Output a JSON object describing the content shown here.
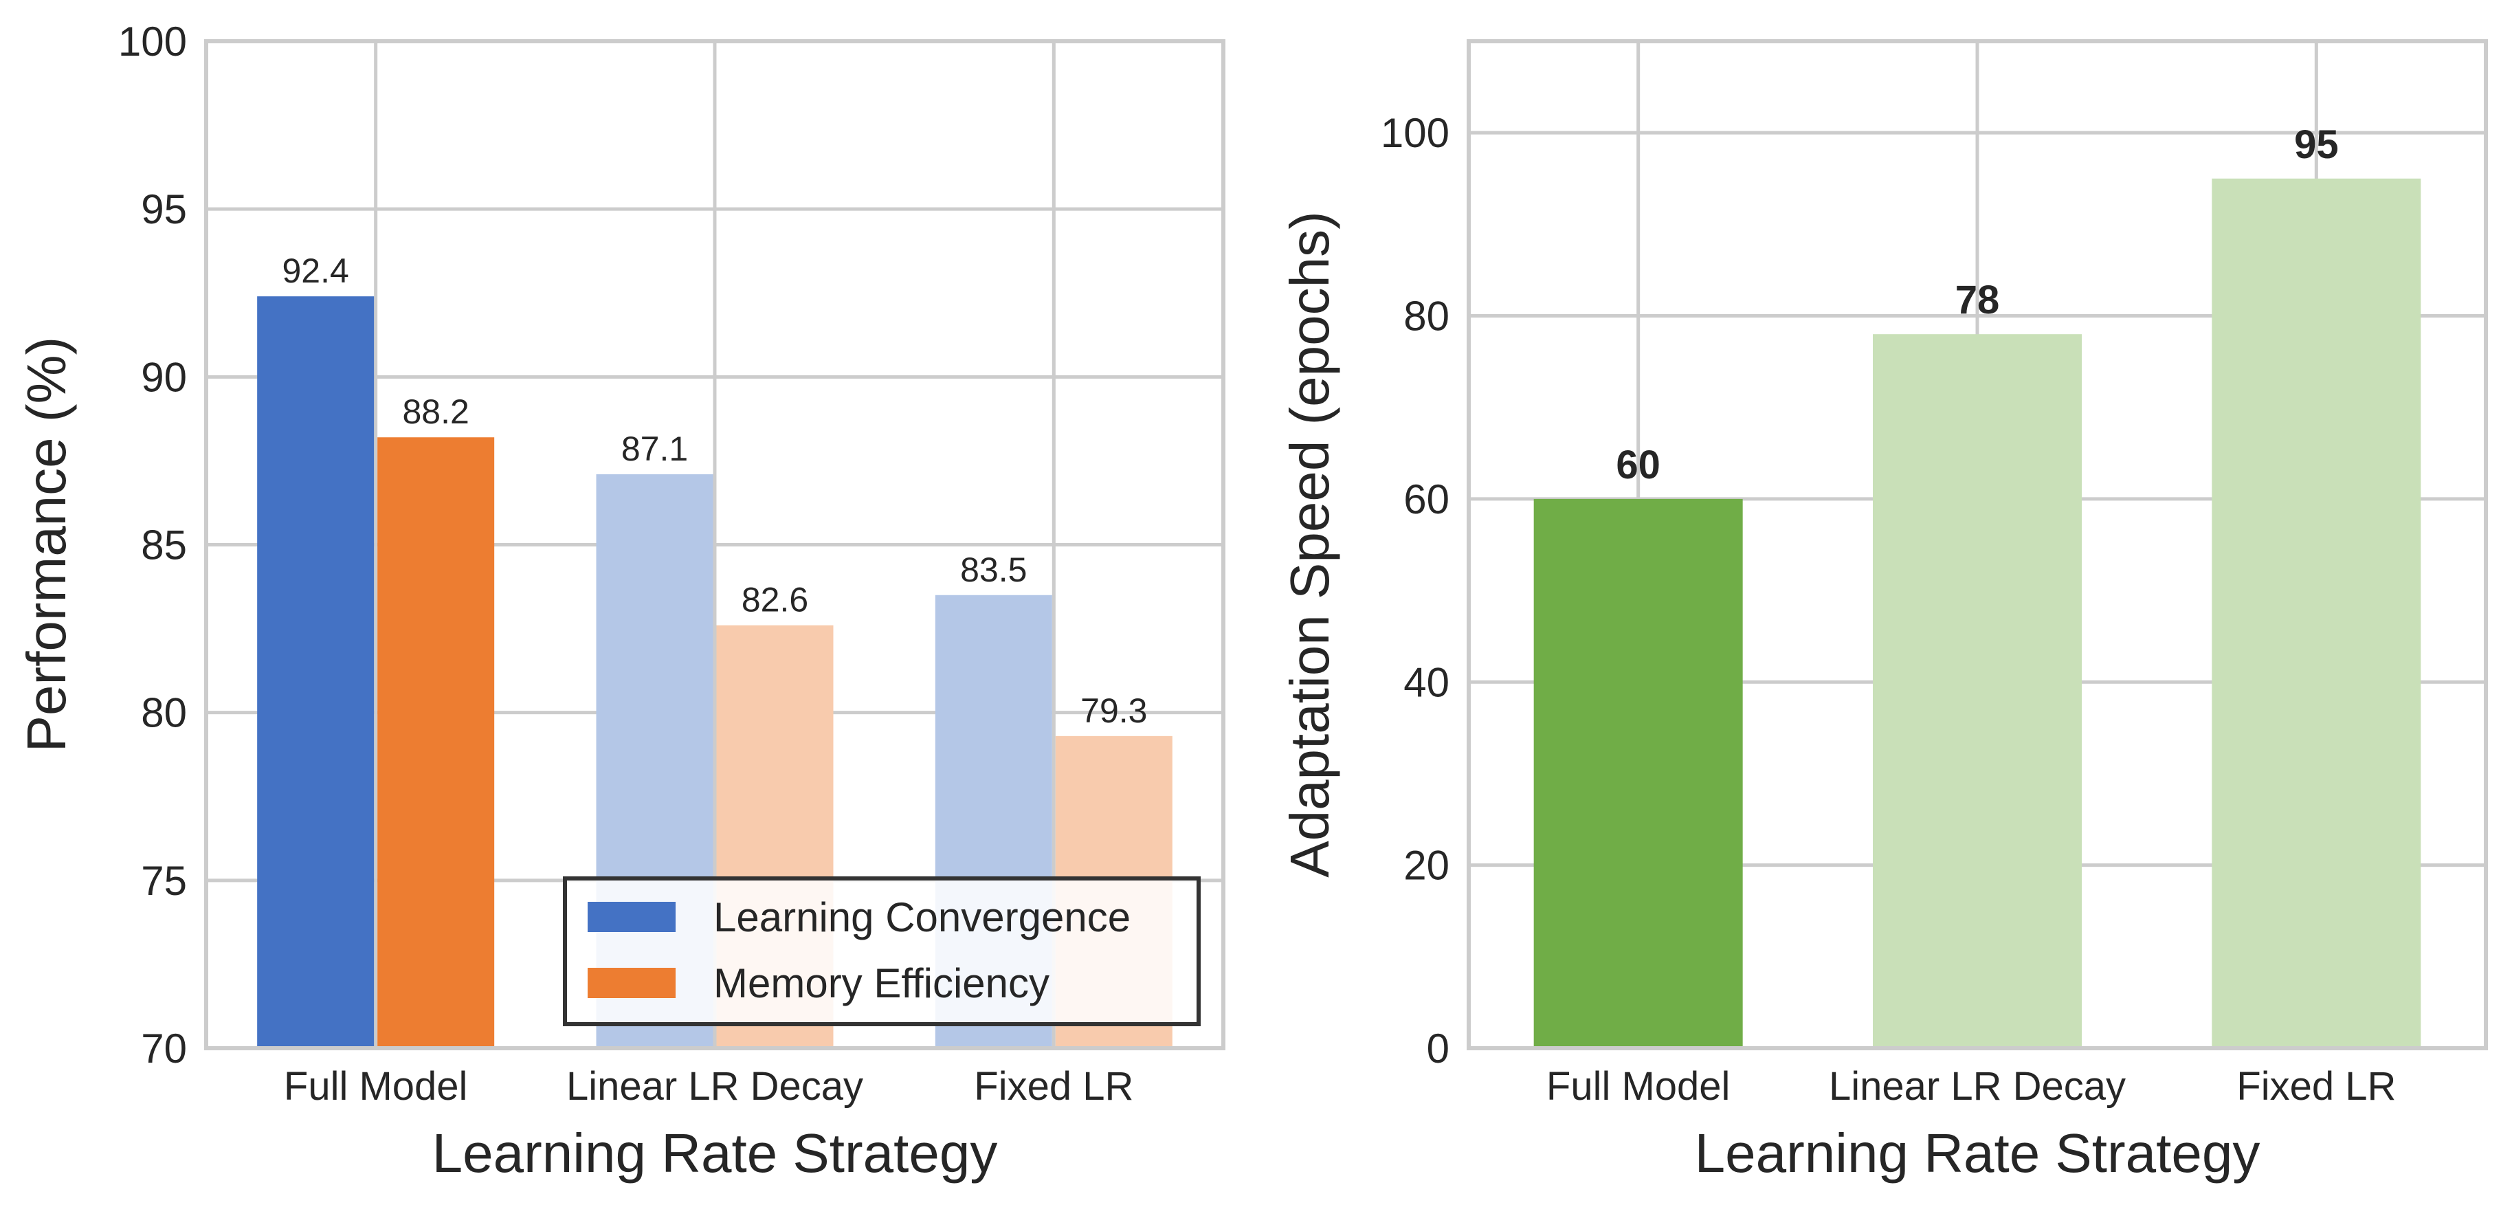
{
  "chart_data": [
    {
      "type": "bar",
      "categories": [
        "Full Model",
        "Linear LR Decay",
        "Fixed LR"
      ],
      "xlabel": "Learning Rate Strategy",
      "ylabel": "Performance (%)",
      "ylim": [
        70,
        100
      ],
      "yticks": [
        "70",
        "75",
        "80",
        "85",
        "90",
        "95",
        "100"
      ],
      "grid": true,
      "legend_position": "lower-right",
      "series": [
        {
          "name": "Learning Convergence",
          "values": [
            92.4,
            87.1,
            83.5
          ],
          "labels": [
            "92.4",
            "87.1",
            "83.5"
          ],
          "color": "#4472C4",
          "highlight_color": "#4472C4",
          "faded_color": "#B4C7E7"
        },
        {
          "name": "Memory Efficiency",
          "values": [
            88.2,
            82.6,
            79.3
          ],
          "labels": [
            "88.2",
            "82.6",
            "79.3"
          ],
          "color": "#ED7D31",
          "highlight_color": "#ED7D31",
          "faded_color": "#F8CBAD"
        }
      ],
      "highlighted_category": "Full Model"
    },
    {
      "type": "bar",
      "categories": [
        "Full Model",
        "Linear LR Decay",
        "Fixed LR"
      ],
      "xlabel": "Learning Rate Strategy",
      "ylabel": "Adaptation Speed (epochs)",
      "ylim": [
        0,
        110
      ],
      "yticks": [
        "0",
        "20",
        "40",
        "60",
        "80",
        "100"
      ],
      "grid": true,
      "series": [
        {
          "values": [
            60,
            78,
            95
          ],
          "labels": [
            "60",
            "78",
            "95"
          ],
          "colors": [
            "#70AD47",
            "#C9E0B8",
            "#C9E0B8"
          ]
        }
      ]
    }
  ]
}
